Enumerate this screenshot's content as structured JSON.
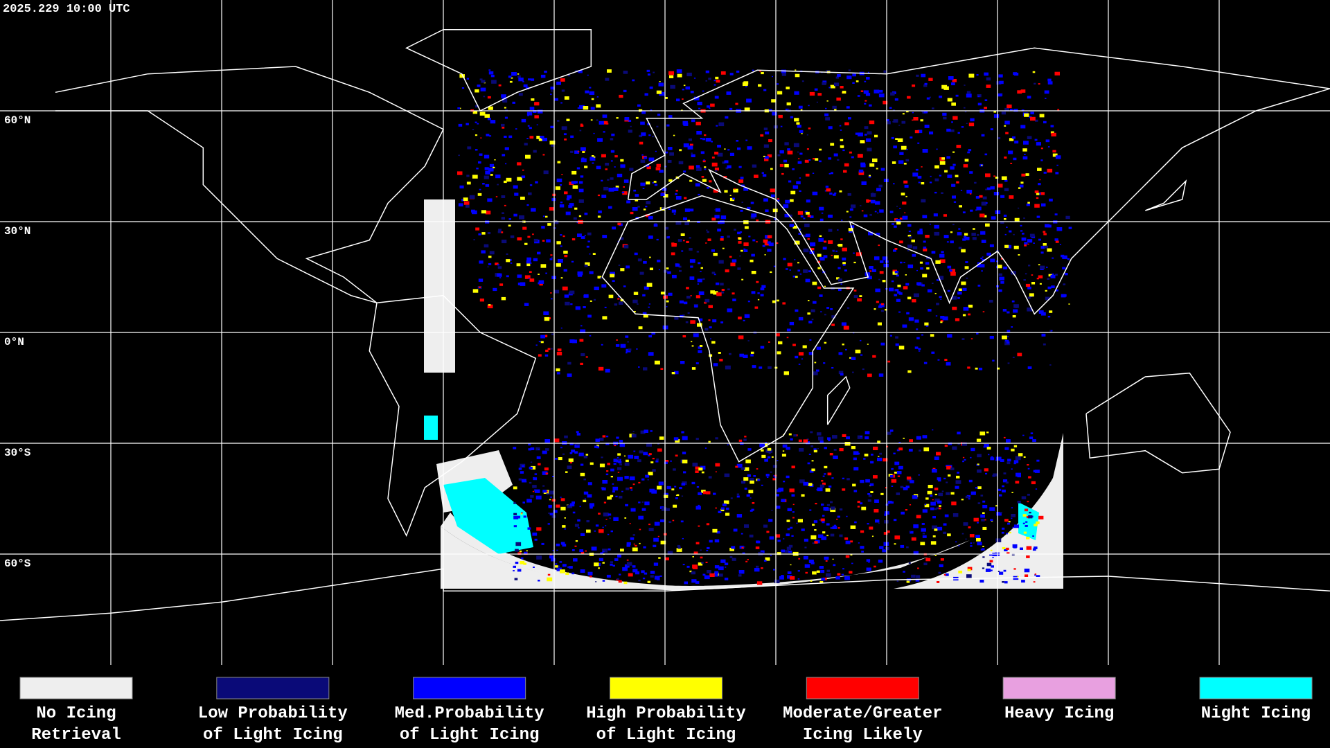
{
  "header": {
    "timestamp": "2025.229 10:00 UTC"
  },
  "latitude_labels": [
    "60°N",
    "30°N",
    "0°N",
    "30°S",
    "60°S"
  ],
  "legend": [
    {
      "lines": [
        "No Icing",
        "Retrieval"
      ],
      "color": "#eeeeee"
    },
    {
      "lines": [
        "Low Probability",
        "of Light Icing"
      ],
      "color": "#0a0a78"
    },
    {
      "lines": [
        "Med.Probability",
        "of Light Icing"
      ],
      "color": "#0000ff"
    },
    {
      "lines": [
        "High Probability",
        "of Light Icing"
      ],
      "color": "#ffff00"
    },
    {
      "lines": [
        "Moderate/Greater",
        "Icing Likely"
      ],
      "color": "#ff0000"
    },
    {
      "lines": [
        "Heavy Icing"
      ],
      "color": "#e8a0e0"
    },
    {
      "lines": [
        "Night Icing"
      ],
      "color": "#00ffff"
    }
  ]
}
